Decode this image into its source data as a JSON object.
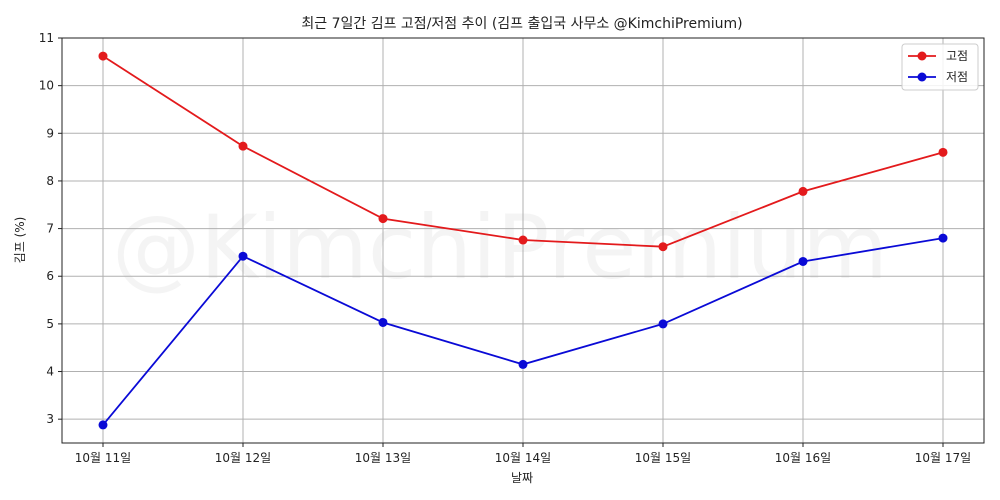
{
  "chart_data": {
    "type": "line",
    "title": "최근 7일간 김프 고점/저점 추이 (김프 출입국 사무소 @KimchiPremium)",
    "xlabel": "날짜",
    "ylabel": "김프 (%)",
    "watermark": "@KimchiPremium",
    "categories": [
      "10월 11일",
      "10월 12일",
      "10월 13일",
      "10월 14일",
      "10월 15일",
      "10월 16일",
      "10월 17일"
    ],
    "ylim": [
      2.5,
      11
    ],
    "yticks": [
      3,
      4,
      5,
      6,
      7,
      8,
      9,
      10,
      11
    ],
    "grid": true,
    "legend_position": "top-right",
    "series": [
      {
        "name": "고점",
        "color": "#e31a1c",
        "values": [
          10.62,
          8.73,
          7.21,
          6.76,
          6.62,
          7.78,
          8.6
        ]
      },
      {
        "name": "저점",
        "color": "#0a0ad6",
        "values": [
          2.88,
          6.42,
          5.03,
          4.15,
          5.0,
          6.31,
          6.8
        ]
      }
    ]
  }
}
